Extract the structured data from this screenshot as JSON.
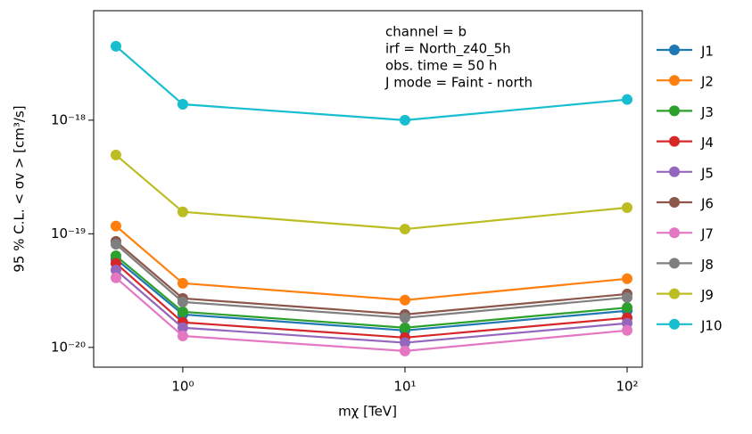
{
  "chart_data": {
    "type": "line",
    "xlabel": "mχ [TeV]",
    "ylabel": "95 % C.L. < σv >  [cm³/s]",
    "annotations": [
      "channel = b",
      "irf = North_z40_5h",
      "obs. time = 50 h",
      "J mode = Faint - north"
    ],
    "x": [
      0.5,
      1,
      10,
      100
    ],
    "xscale": "log",
    "yscale": "log",
    "xlim": [
      0.397,
      117
    ],
    "ylim": [
      6.7e-21,
      9.2e-18
    ],
    "xticks": [
      {
        "value": 1,
        "label": "10⁰"
      },
      {
        "value": 10,
        "label": "10¹"
      },
      {
        "value": 100,
        "label": "10²"
      }
    ],
    "yticks": [
      {
        "value": 1e-20,
        "label": "10⁻²⁰"
      },
      {
        "value": 1e-19,
        "label": "10⁻¹⁹"
      },
      {
        "value": 1e-18,
        "label": "10⁻¹⁸"
      }
    ],
    "legend": "outside right",
    "series": [
      {
        "name": "J1",
        "color": "#1f77b4",
        "values": [
          6e-20,
          1.95e-20,
          1.41e-20,
          2.1e-20
        ]
      },
      {
        "name": "J2",
        "color": "#ff7f0e",
        "values": [
          1.17e-19,
          3.67e-20,
          2.61e-20,
          4.02e-20
        ]
      },
      {
        "name": "J3",
        "color": "#2ca02c",
        "values": [
          6.4e-20,
          2.06e-20,
          1.49e-20,
          2.24e-20
        ]
      },
      {
        "name": "J4",
        "color": "#d62728",
        "values": [
          5.5e-20,
          1.66e-20,
          1.22e-20,
          1.82e-20
        ]
      },
      {
        "name": "J5",
        "color": "#9467bd",
        "values": [
          4.8e-20,
          1.49e-20,
          1.1e-20,
          1.63e-20
        ]
      },
      {
        "name": "J6",
        "color": "#8c564b",
        "values": [
          8.57e-20,
          2.7e-20,
          1.95e-20,
          2.95e-20
        ]
      },
      {
        "name": "J7",
        "color": "#e377c2",
        "values": [
          4.1e-20,
          1.26e-20,
          9.3e-21,
          1.41e-20
        ]
      },
      {
        "name": "J8",
        "color": "#7f7f7f",
        "values": [
          8.1e-20,
          2.51e-20,
          1.82e-20,
          2.75e-20
        ]
      },
      {
        "name": "J9",
        "color": "#bcbd22",
        "values": [
          4.94e-19,
          1.56e-19,
          1.1e-19,
          1.7e-19
        ]
      },
      {
        "name": "J10",
        "color": "#17becf",
        "values": [
          4.48e-18,
          1.38e-18,
          1e-18,
          1.52e-18
        ]
      }
    ]
  }
}
